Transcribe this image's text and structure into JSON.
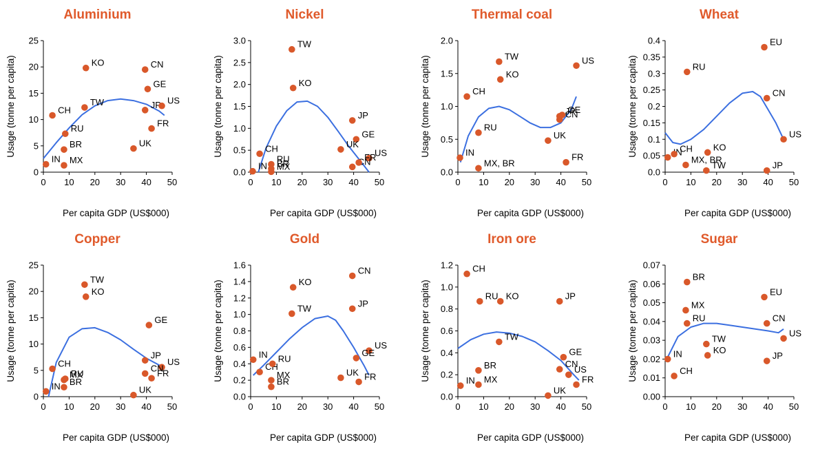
{
  "colors": {
    "title": "#e05a2b",
    "point": "#d9582a",
    "trend": "#3b6fe0",
    "axis": "#000000"
  },
  "chart_data": [
    {
      "type": "scatter",
      "title": "Aluminium",
      "xlabel": "Per capita GDP (US$000)",
      "ylabel": "Usage (tonne per capita)",
      "xlim": [
        0,
        50
      ],
      "ylim": [
        0,
        25
      ],
      "xticks": [
        "0",
        "10",
        "20",
        "30",
        "40",
        "50"
      ],
      "yticks": [
        "0",
        "5",
        "10",
        "15",
        "20",
        "25"
      ],
      "points": [
        {
          "label": "IN",
          "x": 1,
          "y": 1.5
        },
        {
          "label": "CH",
          "x": 3.5,
          "y": 10.8
        },
        {
          "label": "RU",
          "x": 8.5,
          "y": 7.3
        },
        {
          "label": "BR",
          "x": 8,
          "y": 4.3
        },
        {
          "label": "MX",
          "x": 8,
          "y": 1.3
        },
        {
          "label": "TW",
          "x": 16,
          "y": 12.3
        },
        {
          "label": "KO",
          "x": 16.5,
          "y": 19.8
        },
        {
          "label": "CN",
          "x": 39.5,
          "y": 19.5
        },
        {
          "label": "GE",
          "x": 40.5,
          "y": 15.8
        },
        {
          "label": "JP",
          "x": 39.5,
          "y": 11.8
        },
        {
          "label": "US",
          "x": 46,
          "y": 12.6
        },
        {
          "label": "FR",
          "x": 42,
          "y": 8.3
        },
        {
          "label": "UK",
          "x": 35,
          "y": 4.5
        }
      ],
      "trend": {
        "x": [
          0,
          5,
          10,
          15,
          20,
          25,
          30,
          35,
          40,
          45,
          47
        ],
        "y": [
          2.6,
          5.6,
          8.4,
          10.9,
          12.6,
          13.6,
          13.9,
          13.6,
          12.9,
          11.6,
          10.8
        ]
      }
    },
    {
      "type": "scatter",
      "title": "Nickel",
      "xlabel": "Per capita GDP (US$000)",
      "ylabel": "Usage (tonne per capita)",
      "xlim": [
        0,
        50
      ],
      "ylim": [
        0,
        3
      ],
      "xticks": [
        "0",
        "10",
        "20",
        "30",
        "40",
        "50"
      ],
      "yticks": [
        "0.0",
        "0.5",
        "1.0",
        "1.5",
        "2.0",
        "2.5",
        "3.0"
      ],
      "points": [
        {
          "label": "IN",
          "x": 0.8,
          "y": 0.02
        },
        {
          "label": "CH",
          "x": 3.5,
          "y": 0.42
        },
        {
          "label": "RU",
          "x": 8,
          "y": 0.18
        },
        {
          "label": "BR",
          "x": 8,
          "y": 0.08
        },
        {
          "label": "MX",
          "x": 8,
          "y": 0.01
        },
        {
          "label": "TW",
          "x": 16,
          "y": 2.8
        },
        {
          "label": "KO",
          "x": 16.5,
          "y": 1.92
        },
        {
          "label": "JP",
          "x": 39.5,
          "y": 1.18
        },
        {
          "label": "GE",
          "x": 41,
          "y": 0.75
        },
        {
          "label": "UK",
          "x": 35,
          "y": 0.52
        },
        {
          "label": "US",
          "x": 46,
          "y": 0.32
        },
        {
          "label": "CN",
          "x": 39.5,
          "y": 0.12
        },
        {
          "label": "FR",
          "x": 42,
          "y": 0.22
        }
      ],
      "trend": {
        "x": [
          3,
          6,
          10,
          14,
          18,
          22,
          26,
          30,
          34,
          38,
          42,
          46
        ],
        "y": [
          0.0,
          0.55,
          1.05,
          1.4,
          1.6,
          1.62,
          1.5,
          1.25,
          0.93,
          0.6,
          0.3,
          0.0
        ]
      }
    },
    {
      "type": "scatter",
      "title": "Thermal coal",
      "xlabel": "Per capita GDP (US$000)",
      "ylabel": "Usage (tonne per capita)",
      "xlim": [
        0,
        50
      ],
      "ylim": [
        0,
        2
      ],
      "xticks": [
        "0",
        "10",
        "20",
        "30",
        "40",
        "50"
      ],
      "yticks": [
        "0.0",
        "0.5",
        "1.0",
        "1.5",
        "2.0"
      ],
      "points": [
        {
          "label": "IN",
          "x": 0.8,
          "y": 0.22
        },
        {
          "label": "CH",
          "x": 3.5,
          "y": 1.15
        },
        {
          "label": "RU",
          "x": 8,
          "y": 0.6
        },
        {
          "label": "MX, BR",
          "x": 8,
          "y": 0.06
        },
        {
          "label": "TW",
          "x": 16,
          "y": 1.68
        },
        {
          "label": "KO",
          "x": 16.5,
          "y": 1.41
        },
        {
          "label": "US",
          "x": 46,
          "y": 1.62
        },
        {
          "label": "JP",
          "x": 39.5,
          "y": 0.85
        },
        {
          "label": "GE",
          "x": 40.5,
          "y": 0.87
        },
        {
          "label": "CN",
          "x": 39.5,
          "y": 0.8
        },
        {
          "label": "UK",
          "x": 35,
          "y": 0.48
        },
        {
          "label": "FR",
          "x": 42,
          "y": 0.15
        }
      ],
      "trend": {
        "x": [
          1,
          4,
          8,
          12,
          16,
          20,
          24,
          28,
          32,
          36,
          40,
          44,
          46
        ],
        "y": [
          0.15,
          0.55,
          0.84,
          0.97,
          1.0,
          0.95,
          0.85,
          0.75,
          0.68,
          0.68,
          0.75,
          0.95,
          1.15
        ]
      }
    },
    {
      "type": "scatter",
      "title": "Wheat",
      "xlabel": "Per capita GDP (US$000)",
      "ylabel": "Usage (tonne per capita)",
      "xlim": [
        0,
        50
      ],
      "ylim": [
        0,
        0.4
      ],
      "xticks": [
        "0",
        "10",
        "20",
        "30",
        "40",
        "50"
      ],
      "yticks": [
        "0.0",
        "0.05",
        "0.1",
        "0.15",
        "0.2",
        "0.25",
        "0.3",
        "0.35",
        "0.4"
      ],
      "points": [
        {
          "label": "IN",
          "x": 1,
          "y": 0.045
        },
        {
          "label": "CH",
          "x": 3.5,
          "y": 0.055
        },
        {
          "label": "RU",
          "x": 8.5,
          "y": 0.305
        },
        {
          "label": "MX, BR",
          "x": 8,
          "y": 0.022
        },
        {
          "label": "KO",
          "x": 16.5,
          "y": 0.06
        },
        {
          "label": "TW",
          "x": 16,
          "y": 0.005
        },
        {
          "label": "EU",
          "x": 38.5,
          "y": 0.38
        },
        {
          "label": "CN",
          "x": 39.5,
          "y": 0.225
        },
        {
          "label": "JP",
          "x": 39.5,
          "y": 0.005
        },
        {
          "label": "US",
          "x": 46,
          "y": 0.1
        }
      ],
      "trend": {
        "x": [
          0,
          3,
          6,
          10,
          15,
          20,
          25,
          30,
          34,
          37,
          40,
          43,
          46
        ],
        "y": [
          0.12,
          0.09,
          0.085,
          0.1,
          0.13,
          0.17,
          0.21,
          0.24,
          0.245,
          0.23,
          0.19,
          0.15,
          0.1
        ]
      }
    },
    {
      "type": "scatter",
      "title": "Copper",
      "xlabel": "Per capita GDP (US$000)",
      "ylabel": "Usage (tonne per capita)",
      "xlim": [
        0,
        50
      ],
      "ylim": [
        0,
        25
      ],
      "xticks": [
        "0",
        "10",
        "20",
        "30",
        "40",
        "50"
      ],
      "yticks": [
        "0",
        "5",
        "10",
        "15",
        "20",
        "25"
      ],
      "points": [
        {
          "label": "IN",
          "x": 1,
          "y": 1.0
        },
        {
          "label": "CH",
          "x": 3.5,
          "y": 5.3
        },
        {
          "label": "RU",
          "x": 8.5,
          "y": 3.4
        },
        {
          "label": "MX",
          "x": 8,
          "y": 3.2
        },
        {
          "label": "BR",
          "x": 8,
          "y": 1.8
        },
        {
          "label": "TW",
          "x": 16,
          "y": 21.3
        },
        {
          "label": "KO",
          "x": 16.5,
          "y": 19.0
        },
        {
          "label": "GE",
          "x": 41,
          "y": 13.6
        },
        {
          "label": "JP",
          "x": 39.5,
          "y": 6.9
        },
        {
          "label": "US",
          "x": 46,
          "y": 5.6
        },
        {
          "label": "CN",
          "x": 39.5,
          "y": 4.4
        },
        {
          "label": "FR",
          "x": 42,
          "y": 3.5
        },
        {
          "label": "UK",
          "x": 35,
          "y": 0.3
        }
      ],
      "trend": {
        "x": [
          2,
          5,
          10,
          15,
          20,
          25,
          30,
          35,
          40,
          45,
          47
        ],
        "y": [
          0.0,
          6.5,
          11.3,
          12.9,
          13.1,
          12.2,
          10.8,
          9.0,
          7.3,
          6.0,
          5.5
        ]
      }
    },
    {
      "type": "scatter",
      "title": "Gold",
      "xlabel": "Per capita GDP (US$000)",
      "ylabel": "Usage (tonne per capita)",
      "xlim": [
        0,
        50
      ],
      "ylim": [
        0,
        1.6
      ],
      "xticks": [
        "0",
        "10",
        "20",
        "30",
        "40",
        "50"
      ],
      "yticks": [
        "0.0",
        "0.2",
        "0.4",
        "0.6",
        "0.8",
        "1.0",
        "1.2",
        "1.4",
        "1.6"
      ],
      "points": [
        {
          "label": "IN",
          "x": 1,
          "y": 0.45
        },
        {
          "label": "CH",
          "x": 3.5,
          "y": 0.3
        },
        {
          "label": "RU",
          "x": 8.5,
          "y": 0.4
        },
        {
          "label": "MX",
          "x": 8,
          "y": 0.2
        },
        {
          "label": "BR",
          "x": 8,
          "y": 0.12
        },
        {
          "label": "KO",
          "x": 16.5,
          "y": 1.33
        },
        {
          "label": "TW",
          "x": 16,
          "y": 1.01
        },
        {
          "label": "CN",
          "x": 39.5,
          "y": 1.47
        },
        {
          "label": "JP",
          "x": 39.5,
          "y": 1.07
        },
        {
          "label": "US",
          "x": 46,
          "y": 0.56
        },
        {
          "label": "GE",
          "x": 41,
          "y": 0.47
        },
        {
          "label": "UK",
          "x": 35,
          "y": 0.23
        },
        {
          "label": "FR",
          "x": 42,
          "y": 0.18
        }
      ],
      "trend": {
        "x": [
          1,
          5,
          10,
          15,
          20,
          25,
          30,
          33,
          36,
          40,
          44,
          46
        ],
        "y": [
          0.26,
          0.38,
          0.54,
          0.7,
          0.84,
          0.95,
          0.98,
          0.93,
          0.8,
          0.6,
          0.38,
          0.26
        ]
      }
    },
    {
      "type": "scatter",
      "title": "Iron ore",
      "xlabel": "Per capita GDP (US$000)",
      "ylabel": "Usage (tonne per capita)",
      "xlim": [
        0,
        50
      ],
      "ylim": [
        0,
        1.2
      ],
      "xticks": [
        "0",
        "10",
        "20",
        "30",
        "40",
        "50"
      ],
      "yticks": [
        "0.0",
        "0.2",
        "0.4",
        "0.6",
        "0.8",
        "1.0",
        "1.2"
      ],
      "points": [
        {
          "label": "IN",
          "x": 1,
          "y": 0.1
        },
        {
          "label": "CH",
          "x": 3.5,
          "y": 1.12
        },
        {
          "label": "RU",
          "x": 8.5,
          "y": 0.87
        },
        {
          "label": "BR",
          "x": 8,
          "y": 0.24
        },
        {
          "label": "MX",
          "x": 8,
          "y": 0.11
        },
        {
          "label": "KO",
          "x": 16.5,
          "y": 0.87
        },
        {
          "label": "TW",
          "x": 16,
          "y": 0.5
        },
        {
          "label": "JP",
          "x": 39.5,
          "y": 0.87
        },
        {
          "label": "GE",
          "x": 41,
          "y": 0.36
        },
        {
          "label": "CN",
          "x": 39.5,
          "y": 0.25
        },
        {
          "label": "US",
          "x": 43,
          "y": 0.2
        },
        {
          "label": "FR",
          "x": 46,
          "y": 0.11
        },
        {
          "label": "UK",
          "x": 35,
          "y": 0.01
        }
      ],
      "trend": {
        "x": [
          0,
          5,
          10,
          15,
          20,
          25,
          30,
          35,
          40,
          45,
          47
        ],
        "y": [
          0.44,
          0.52,
          0.57,
          0.59,
          0.58,
          0.55,
          0.5,
          0.42,
          0.33,
          0.2,
          0.15
        ]
      }
    },
    {
      "type": "scatter",
      "title": "Sugar",
      "xlabel": "Per capita GDP (US$000)",
      "ylabel": "Usage (tonne per capita)",
      "xlim": [
        0,
        50
      ],
      "ylim": [
        0,
        0.07
      ],
      "xticks": [
        "0",
        "10",
        "20",
        "30",
        "40",
        "50"
      ],
      "yticks": [
        "0.00",
        "0.01",
        "0.02",
        "0.03",
        "0.04",
        "0.05",
        "0.06",
        "0.07"
      ],
      "points": [
        {
          "label": "IN",
          "x": 1,
          "y": 0.02
        },
        {
          "label": "CH",
          "x": 3.5,
          "y": 0.011
        },
        {
          "label": "BR",
          "x": 8.5,
          "y": 0.061
        },
        {
          "label": "MX",
          "x": 8,
          "y": 0.046
        },
        {
          "label": "RU",
          "x": 8.5,
          "y": 0.039
        },
        {
          "label": "TW",
          "x": 16,
          "y": 0.028
        },
        {
          "label": "KO",
          "x": 16.5,
          "y": 0.022
        },
        {
          "label": "EU",
          "x": 38.5,
          "y": 0.053
        },
        {
          "label": "CN",
          "x": 39.5,
          "y": 0.039
        },
        {
          "label": "US",
          "x": 46,
          "y": 0.031
        },
        {
          "label": "JP",
          "x": 39.5,
          "y": 0.019
        }
      ],
      "trend": {
        "x": [
          1,
          5,
          10,
          15,
          20,
          25,
          30,
          35,
          40,
          44,
          46
        ],
        "y": [
          0.021,
          0.032,
          0.037,
          0.039,
          0.039,
          0.038,
          0.037,
          0.036,
          0.035,
          0.034,
          0.036
        ]
      }
    }
  ]
}
